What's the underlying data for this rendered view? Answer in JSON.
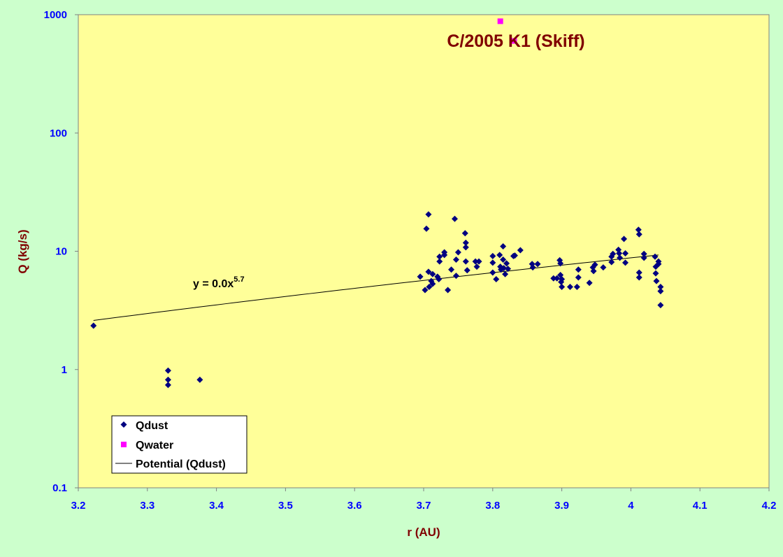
{
  "chart_data": {
    "type": "scatter",
    "title": "C/2005 K1 (Skiff)",
    "xlabel": "r (AU)",
    "ylabel": "Q (kg/s)",
    "xlim": [
      3.2,
      4.2
    ],
    "ylim": [
      0.1,
      1000
    ],
    "yscale": "log",
    "x_ticks": [
      "3.2",
      "3.3",
      "3.4",
      "3.5",
      "3.6",
      "3.7",
      "3.8",
      "3.9",
      "4",
      "4.1",
      "4.2"
    ],
    "y_ticks": [
      "0.1",
      "1",
      "10",
      "100",
      "1000"
    ],
    "grid": false,
    "legend_position": "bottom-left",
    "colors": {
      "background": "#ccffcc",
      "plot_area": "#ffff99",
      "qdust": "#000080",
      "qwater": "#ff00ff",
      "trendline": "#000000",
      "axis_text": "#0000ff",
      "label_text": "#800000"
    },
    "trendline_label": {
      "text": "y = 0.0x",
      "exponent": "5.7"
    },
    "trendline": {
      "name": "Potential (Qdust)",
      "points": [
        [
          3.222,
          2.6
        ],
        [
          4.04,
          9.3
        ]
      ]
    },
    "series": [
      {
        "name": "Qdust",
        "marker": "diamond",
        "points": [
          [
            3.222,
            2.35
          ],
          [
            3.33,
            0.98
          ],
          [
            3.33,
            0.82
          ],
          [
            3.33,
            0.74
          ],
          [
            3.376,
            0.82
          ],
          [
            3.695,
            6.1
          ],
          [
            3.702,
            4.7
          ],
          [
            3.704,
            15.5
          ],
          [
            3.707,
            20.5
          ],
          [
            3.707,
            6.7
          ],
          [
            3.708,
            5.0
          ],
          [
            3.711,
            5.6
          ],
          [
            3.713,
            5.3
          ],
          [
            3.713,
            6.4
          ],
          [
            3.72,
            6.1
          ],
          [
            3.722,
            5.8
          ],
          [
            3.723,
            9.0
          ],
          [
            3.723,
            8.2
          ],
          [
            3.73,
            9.3
          ],
          [
            3.73,
            9.8
          ],
          [
            3.735,
            4.7
          ],
          [
            3.74,
            7.0
          ],
          [
            3.745,
            18.8
          ],
          [
            3.747,
            6.2
          ],
          [
            3.747,
            8.5
          ],
          [
            3.75,
            9.8
          ],
          [
            3.76,
            14.2
          ],
          [
            3.761,
            11.8
          ],
          [
            3.761,
            10.8
          ],
          [
            3.761,
            8.2
          ],
          [
            3.763,
            6.9
          ],
          [
            3.775,
            8.2
          ],
          [
            3.777,
            7.4
          ],
          [
            3.78,
            8.2
          ],
          [
            3.8,
            9.1
          ],
          [
            3.8,
            8.0
          ],
          [
            3.8,
            6.6
          ],
          [
            3.805,
            5.8
          ],
          [
            3.81,
            9.3
          ],
          [
            3.811,
            7.4
          ],
          [
            3.812,
            7.0
          ],
          [
            3.815,
            11.0
          ],
          [
            3.815,
            8.5
          ],
          [
            3.816,
            7.2
          ],
          [
            3.818,
            6.4
          ],
          [
            3.82,
            7.9
          ],
          [
            3.822,
            7.1
          ],
          [
            3.83,
            9.1
          ],
          [
            3.832,
            9.2
          ],
          [
            3.84,
            10.2
          ],
          [
            3.857,
            7.8
          ],
          [
            3.858,
            7.3
          ],
          [
            3.865,
            7.8
          ],
          [
            3.888,
            5.9
          ],
          [
            3.893,
            5.9
          ],
          [
            3.897,
            8.4
          ],
          [
            3.898,
            7.9
          ],
          [
            3.898,
            6.3
          ],
          [
            3.899,
            5.5
          ],
          [
            3.9,
            5.0
          ],
          [
            3.9,
            5.8
          ],
          [
            3.912,
            5.0
          ],
          [
            3.922,
            5.0
          ],
          [
            3.924,
            6.0
          ],
          [
            3.924,
            7.0
          ],
          [
            3.94,
            5.4
          ],
          [
            3.945,
            7.3
          ],
          [
            3.946,
            6.8
          ],
          [
            3.948,
            7.7
          ],
          [
            3.96,
            7.3
          ],
          [
            3.972,
            9.0
          ],
          [
            3.972,
            8.1
          ],
          [
            3.974,
            9.5
          ],
          [
            3.982,
            10.3
          ],
          [
            3.983,
            9.6
          ],
          [
            3.984,
            8.8
          ],
          [
            3.99,
            12.7
          ],
          [
            3.992,
            9.6
          ],
          [
            3.992,
            8.0
          ],
          [
            4.011,
            15.2
          ],
          [
            4.012,
            13.9
          ],
          [
            4.012,
            6.6
          ],
          [
            4.012,
            6.0
          ],
          [
            4.019,
            9.5
          ],
          [
            4.019,
            8.8
          ],
          [
            4.035,
            9.0
          ],
          [
            4.036,
            7.4
          ],
          [
            4.036,
            6.5
          ],
          [
            4.037,
            5.6
          ],
          [
            4.04,
            8.2
          ],
          [
            4.04,
            7.8
          ],
          [
            4.043,
            5.0
          ],
          [
            4.043,
            4.6
          ],
          [
            4.043,
            3.5
          ]
        ]
      },
      {
        "name": "Qwater",
        "marker": "square",
        "points": [
          [
            3.811,
            880
          ],
          [
            3.831,
            600
          ]
        ]
      }
    ]
  }
}
